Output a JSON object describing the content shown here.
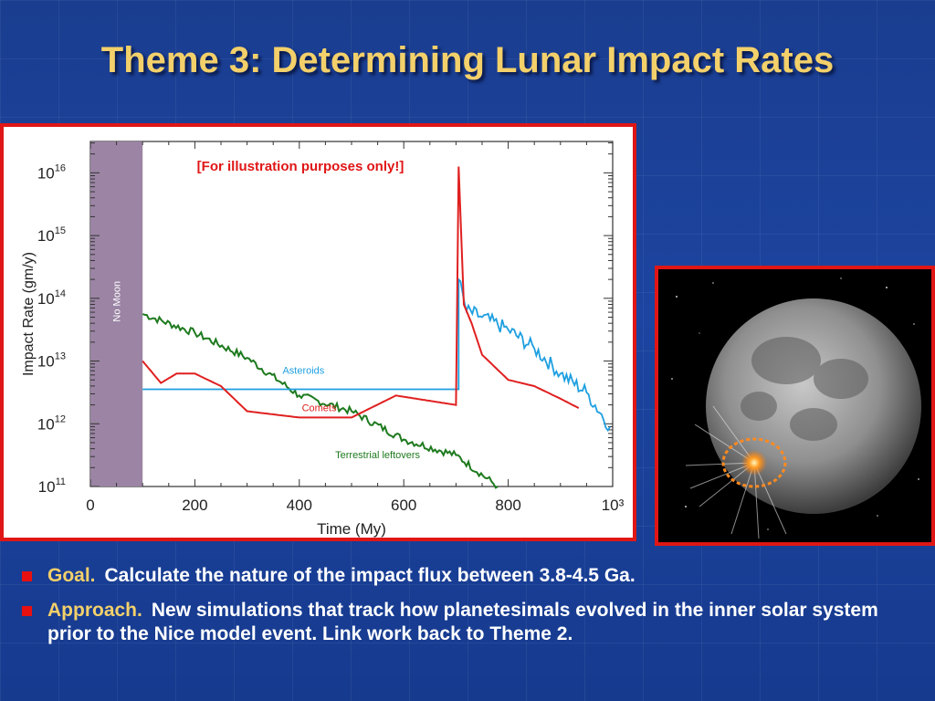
{
  "slide": {
    "title": "Theme 3:  Determining Lunar Impact Rates"
  },
  "chart_data": {
    "type": "line",
    "annotation": "[For illustration purposes only!]",
    "xlabel": "Time (My)",
    "ylabel": "Impact Rate (gm/y)",
    "x_ticks": [
      "0",
      "200",
      "400",
      "600",
      "800",
      "10³"
    ],
    "y_ticks": [
      {
        "base": "10",
        "exp": "11"
      },
      {
        "base": "10",
        "exp": "12"
      },
      {
        "base": "10",
        "exp": "13"
      },
      {
        "base": "10",
        "exp": "14"
      },
      {
        "base": "10",
        "exp": "15"
      },
      {
        "base": "10",
        "exp": "16"
      }
    ],
    "xlim": [
      0,
      1000
    ],
    "ylim_log10": [
      11,
      16.5
    ],
    "y_scale": "log",
    "shaded_region": {
      "label": "No Moon",
      "x_start": 0,
      "x_end": 100,
      "color": "#9b84a4"
    },
    "series": [
      {
        "name": "Terrestrial leftovers",
        "color": "#1e7a1e",
        "x": [
          100,
          200,
          300,
          400,
          500,
          600,
          700,
          780
        ],
        "log10_y": [
          13.75,
          13.45,
          13.05,
          12.45,
          12.2,
          11.75,
          11.5,
          11.0
        ]
      },
      {
        "name": "Asteroids",
        "color": "#1e9fe0",
        "x": [
          100,
          705,
          705,
          720,
          750,
          800,
          850,
          900,
          950,
          995
        ],
        "log10_y": [
          12.55,
          12.55,
          14.3,
          13.8,
          13.7,
          13.5,
          13.2,
          12.8,
          12.5,
          11.95
        ]
      },
      {
        "name": "Comets",
        "color": "#e02020",
        "x": [
          100,
          135,
          165,
          200,
          250,
          300,
          400,
          500,
          585,
          700,
          705,
          715,
          730,
          750,
          800,
          850,
          900,
          935
        ],
        "log10_y": [
          13.0,
          12.65,
          12.8,
          12.8,
          12.6,
          12.2,
          12.1,
          12.1,
          12.45,
          12.3,
          16.1,
          13.9,
          13.6,
          13.1,
          12.7,
          12.6,
          12.4,
          12.25
        ]
      }
    ]
  },
  "bullets": [
    {
      "lead": "Goal.",
      "text": "Calculate the nature of the impact flux between 3.8-4.5 Ga."
    },
    {
      "lead": "Approach.",
      "text": "New simulations that track how planetesimals evolved in the inner solar system prior to the Nice model event.  Link work back to Theme 2."
    }
  ],
  "colors": {
    "title": "#f3d06a",
    "frame": "#e01616",
    "background": "#1c44a0"
  }
}
